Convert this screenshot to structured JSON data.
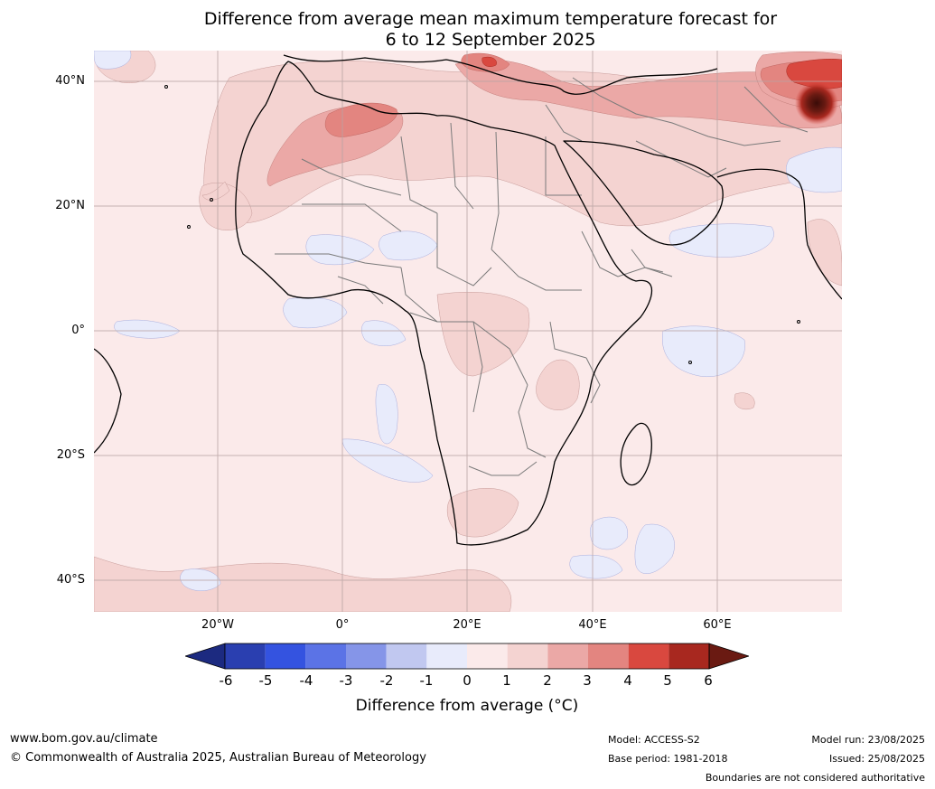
{
  "title": {
    "line1": "Difference from average mean maximum temperature forecast for",
    "line2": "6 to 12 September 2025"
  },
  "lat_labels": [
    "40°N",
    "20°N",
    "0°",
    "20°S",
    "40°S"
  ],
  "lon_labels": [
    "20°W",
    "0°",
    "20°E",
    "40°E",
    "60°E"
  ],
  "colorbar": {
    "ticks": [
      "-6",
      "-5",
      "-4",
      "-3",
      "-2",
      "-1",
      "0",
      "1",
      "2",
      "3",
      "4",
      "5",
      "6"
    ],
    "label": "Difference from average ($^\\circ$C)",
    "label_display": "Difference from average (°C)",
    "colors": [
      "#1c2a80",
      "#2a3fb0",
      "#3453e0",
      "#5b73e6",
      "#8595e8",
      "#c1c8f0",
      "#e8ebfb",
      "#fbeaea",
      "#f4d3d1",
      "#eba8a6",
      "#e38580",
      "#d9483f",
      "#a8281f",
      "#6a1a12"
    ]
  },
  "footer": {
    "url": "www.bom.gov.au/climate",
    "copyright": "© Commonwealth of Australia 2025, Australian Bureau of Meteorology",
    "model": "Model: ACCESS-S2",
    "base_period": "Base period: 1981-2018",
    "model_run": "Model run: 23/08/2025",
    "issued": "Issued: 25/08/2025",
    "boundaries": "Boundaries are not considered authoritative"
  }
}
